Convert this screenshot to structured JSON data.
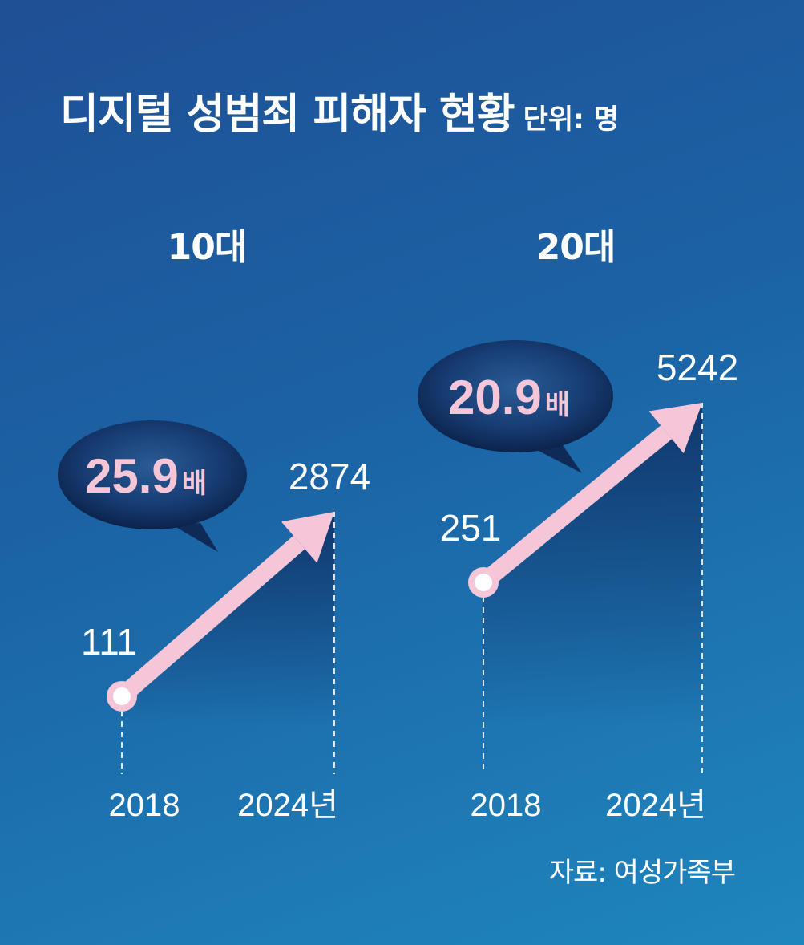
{
  "header": {
    "title": "디지털 성범죄 피해자 현황",
    "unit": "단위: 명"
  },
  "source": "자료: 여성가족부",
  "accent_color": "#f4c6d8",
  "chart_data": [
    {
      "type": "line",
      "panel": "10대",
      "x": [
        "2018",
        "2024년"
      ],
      "values": [
        111,
        2874
      ],
      "value_labels": [
        "111",
        "2874"
      ],
      "ratio": "25.9",
      "ratio_suffix": "배"
    },
    {
      "type": "line",
      "panel": "20대",
      "x": [
        "2018",
        "2024년"
      ],
      "values": [
        251,
        5242
      ],
      "value_labels": [
        "251",
        "5242"
      ],
      "ratio": "20.9",
      "ratio_suffix": "배"
    }
  ]
}
